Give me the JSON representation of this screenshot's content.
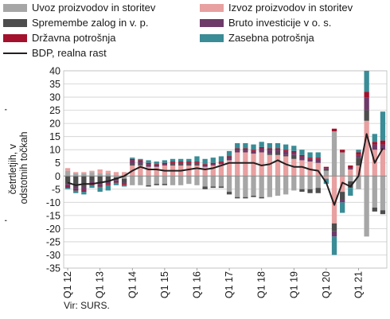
{
  "chart_data": {
    "type": "bar",
    "ylabel": "Prispevki medletni rasti BDP po četrtletjih, v odstotnih točkah",
    "ylim": [
      -35,
      40
    ],
    "yticks": [
      -35,
      -30,
      -25,
      -20,
      -15,
      -10,
      -5,
      0,
      5,
      10,
      15,
      20,
      25,
      30,
      35,
      40
    ],
    "grid": true,
    "legend_position": "top",
    "x_tick_labels": [
      "Q1 12",
      "Q1 13",
      "Q1 14",
      "Q1 15",
      "Q1 16",
      "Q1 17",
      "Q1 18",
      "Q1 19",
      "Q1 20",
      "Q1 21"
    ],
    "source": "Vir: SURS.",
    "categories": [
      "Q1 12",
      "Q2 12",
      "Q3 12",
      "Q4 12",
      "Q1 13",
      "Q2 13",
      "Q3 13",
      "Q4 13",
      "Q1 14",
      "Q2 14",
      "Q3 14",
      "Q4 14",
      "Q1 15",
      "Q2 15",
      "Q3 15",
      "Q4 15",
      "Q1 16",
      "Q2 16",
      "Q3 16",
      "Q4 16",
      "Q1 17",
      "Q2 17",
      "Q3 17",
      "Q4 17",
      "Q1 18",
      "Q2 18",
      "Q3 18",
      "Q4 18",
      "Q1 19",
      "Q2 19",
      "Q3 19",
      "Q4 19",
      "Q1 20",
      "Q2 20",
      "Q3 20",
      "Q4 20",
      "Q1 21",
      "Q2 21",
      "Q3 21",
      "Q4 21"
    ],
    "series": [
      {
        "name": "Uvoz proizvodov in storitev",
        "color": "#a6a6a6",
        "values": [
          2,
          1,
          1,
          1.5,
          1,
          1,
          -0.5,
          -1,
          -3.5,
          -3.5,
          -3.5,
          -3,
          -3,
          -3.5,
          -3.5,
          -3,
          -3.5,
          -4,
          -4,
          -4,
          -6,
          -8,
          -8,
          -7.5,
          -8,
          -8,
          -7.5,
          -7,
          -5.5,
          -5,
          -5,
          -4.5,
          2,
          17,
          9,
          -2,
          -5,
          -23,
          -12,
          -13
        ]
      },
      {
        "name": "Izvoz proizvodov in storitev",
        "color": "#e8a0a0",
        "values": [
          1,
          0.5,
          0.5,
          0.5,
          1.5,
          1,
          1.5,
          1.5,
          4,
          4,
          3.5,
          3.5,
          4,
          4,
          4,
          4,
          4,
          3.5,
          4,
          4.5,
          6,
          9,
          9,
          8.5,
          9,
          8,
          8,
          7.5,
          6.5,
          6,
          5.5,
          5,
          -1,
          -18,
          -6,
          2.5,
          4,
          21,
          10,
          10
        ]
      },
      {
        "name": "Spremembe zalog in v. p.",
        "color": "#4d4d4d",
        "values": [
          -3,
          -4,
          -4,
          -2,
          -2.5,
          -2,
          -1,
          -1.5,
          0.5,
          0.5,
          -0.5,
          -0.5,
          -0.5,
          0.5,
          0.5,
          0.5,
          0.5,
          -1,
          -0.5,
          -0.5,
          -1,
          -0.5,
          -0.5,
          -0.5,
          -0.5,
          0.5,
          1,
          0.5,
          1.5,
          -1,
          -1.5,
          -2,
          0.5,
          -3,
          -3,
          -2.5,
          3,
          4,
          -1.5,
          -1.5
        ]
      },
      {
        "name": "Bruto investicije v o. s.",
        "color": "#6e3a6a",
        "values": [
          -1,
          -1,
          -1.5,
          -1,
          -1,
          -1,
          -0.5,
          -0.5,
          1.5,
          1,
          1,
          0.5,
          0.5,
          0.5,
          0.5,
          0.5,
          0.5,
          0.5,
          0.5,
          0.5,
          1,
          1,
          1,
          1,
          1.5,
          1.5,
          1,
          1.5,
          1,
          1.5,
          1,
          1.5,
          0.5,
          -2,
          -1,
          0.5,
          1,
          5,
          2,
          2
        ]
      },
      {
        "name": "Državna potrošnja",
        "color": "#a3112c",
        "values": [
          -0.5,
          -0.5,
          -0.5,
          -0.5,
          -0.5,
          -0.5,
          -0.5,
          -0.5,
          0.5,
          0.5,
          0.5,
          0.5,
          0.5,
          0.5,
          0.5,
          0.5,
          0.5,
          0.5,
          0.5,
          0.5,
          0.5,
          0.5,
          0.5,
          0.5,
          0.5,
          0.5,
          0.5,
          0.5,
          0.5,
          0.5,
          0.5,
          0.5,
          0.5,
          1,
          1,
          1,
          1,
          2,
          1,
          1.5
        ]
      },
      {
        "name": "Zasebna potrošnja",
        "color": "#3a8c96",
        "values": [
          -0.5,
          -1,
          -1,
          -1,
          -2,
          -2,
          -1,
          -0.5,
          0.5,
          0.5,
          1,
          1,
          1,
          1,
          1,
          1,
          2,
          2,
          2,
          2,
          2,
          2,
          2,
          2,
          2,
          2,
          2,
          2,
          2,
          2,
          2,
          2,
          -2,
          -7,
          -4,
          -3,
          1,
          8,
          3,
          11
        ]
      },
      {
        "name": "BDP, realna rast",
        "color": "#231f20",
        "type": "line",
        "values": [
          -2.5,
          -3.5,
          -3,
          -3,
          -2.5,
          -2,
          -1,
          0,
          2,
          3.5,
          2.5,
          2.5,
          2,
          2,
          2,
          2.5,
          3,
          2.5,
          3,
          4,
          5,
          5,
          5,
          5,
          4,
          4.5,
          6,
          4.5,
          3.5,
          3.5,
          2.5,
          2,
          -2.5,
          -11,
          -2.5,
          -4,
          0,
          16,
          5,
          10.5
        ]
      }
    ]
  }
}
